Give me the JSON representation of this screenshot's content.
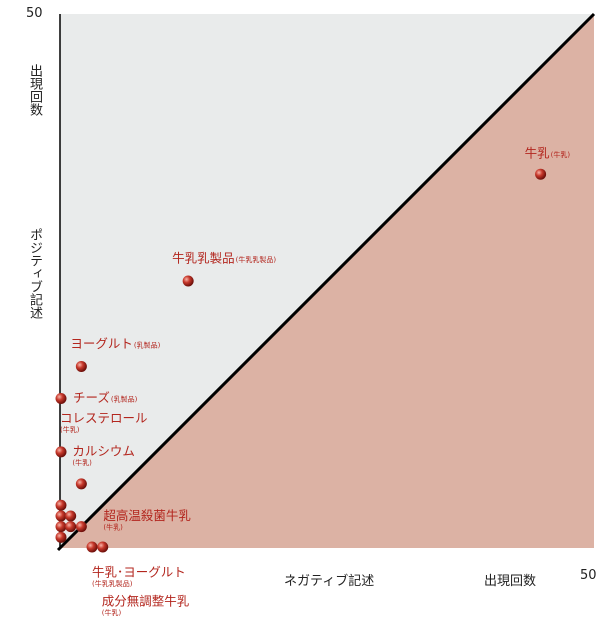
{
  "chart_data": {
    "type": "scatter",
    "xlim": [
      0,
      50
    ],
    "ylim": [
      0,
      50
    ],
    "x_max_label": "50",
    "y_max_label": "50",
    "ylabel_top": "出現回数",
    "ylabel_bottom": "ポジティブ記述",
    "xlabel_left": "ネガティブ記述",
    "xlabel_right": "出現回数",
    "colors": {
      "upper_region": "#e9ebeb",
      "lower_region": "#dcb2a4",
      "point": "#b3261e",
      "label": "#b3261e",
      "diagonal": "#000000"
    },
    "points": [
      {
        "label": "牛乳",
        "sub": "(牛乳)",
        "x": 45,
        "y": 35
      },
      {
        "label": "牛乳乳製品",
        "sub": "(牛乳乳製品)",
        "x": 12,
        "y": 25
      },
      {
        "label": "ヨーグルト",
        "sub": "(乳製品)",
        "x": 2,
        "y": 17
      },
      {
        "label": "チーズ",
        "sub": "(乳製品)",
        "x": 0,
        "y": 14
      },
      {
        "label": "コレステロール",
        "sub": "(牛乳)",
        "x": 0,
        "y": 9
      },
      {
        "label": "カルシウム",
        "sub": "(牛乳)",
        "x": 2,
        "y": 6
      },
      {
        "label": "超高温殺菌牛乳",
        "sub": "(牛乳)",
        "x": 2,
        "y": 2
      },
      {
        "label": "",
        "sub": "",
        "x": 0,
        "y": 4
      },
      {
        "label": "",
        "sub": "",
        "x": 0,
        "y": 3
      },
      {
        "label": "",
        "sub": "",
        "x": 1,
        "y": 3
      },
      {
        "label": "",
        "sub": "",
        "x": 0,
        "y": 2
      },
      {
        "label": "",
        "sub": "",
        "x": 1,
        "y": 2
      },
      {
        "label": "",
        "sub": "",
        "x": 0,
        "y": 1
      },
      {
        "label": "牛乳･ヨーグルト",
        "sub": "(牛乳乳製品)",
        "x": 3,
        "y": 0
      },
      {
        "label": "成分無調整牛乳",
        "sub": "(牛乳)",
        "x": 4,
        "y": 0
      }
    ]
  }
}
